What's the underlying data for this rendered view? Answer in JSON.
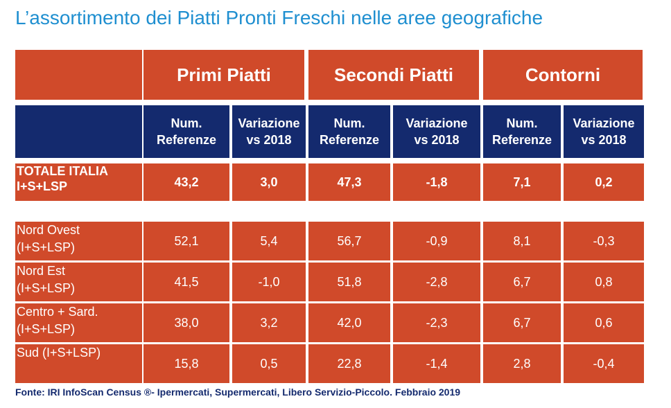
{
  "title": "L’assortimento dei Piatti Pronti Freschi nelle aree geografiche",
  "groups": [
    "Primi Piatti",
    "Secondi Piatti",
    "Contorni"
  ],
  "subheaders": [
    [
      "Num.",
      "Referenze"
    ],
    [
      "Variazione",
      "vs 2018"
    ],
    [
      "Num.",
      "Referenze"
    ],
    [
      "Variazione",
      "vs 2018"
    ],
    [
      "Num.",
      "Referenze"
    ],
    [
      "Variazione",
      "vs 2018"
    ]
  ],
  "total": {
    "label": [
      "TOTALE ITALIA",
      "I+S+LSP"
    ],
    "values": [
      "43,2",
      "3,0",
      "47,3",
      "-1,8",
      "7,1",
      "0,2"
    ]
  },
  "rows": [
    {
      "label": [
        "Nord Ovest",
        "(I+S+LSP)"
      ],
      "values": [
        "52,1",
        "5,4",
        "56,7",
        "-0,9",
        "8,1",
        "-0,3"
      ]
    },
    {
      "label": [
        "Nord Est",
        "(I+S+LSP)"
      ],
      "values": [
        "41,5",
        "-1,0",
        "51,8",
        "-2,8",
        "6,7",
        "0,8"
      ]
    },
    {
      "label": [
        "Centro + Sard.",
        "(I+S+LSP)"
      ],
      "values": [
        "38,0",
        "3,2",
        "42,0",
        "-2,3",
        "6,7",
        "0,6"
      ]
    },
    {
      "label": [
        "Sud (I+S+LSP)"
      ],
      "values": [
        "15,8",
        "0,5",
        "22,8",
        "-1,4",
        "2,8",
        "-0,4"
      ]
    }
  ],
  "source": "Fonte: IRI InfoScan Census ®- Ipermercati, Supermercati, Libero Servizio-Piccolo. Febbraio 2019",
  "colors": {
    "orange": "#d04a2a",
    "navy": "#142a6e",
    "title_blue": "#1f8fd0"
  }
}
